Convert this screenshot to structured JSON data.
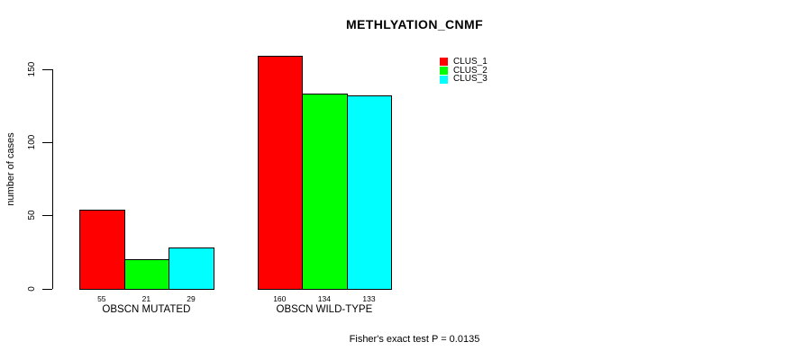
{
  "chart_data": {
    "type": "bar",
    "title": "METHLYATION_CNMF",
    "ylabel": "number of cases",
    "xlabel": "",
    "categories": [
      "OBSCN MUTATED",
      "OBSCN WILD-TYPE"
    ],
    "series": [
      {
        "name": "CLUS_1",
        "color": "#FF0000",
        "values": [
          55,
          160
        ]
      },
      {
        "name": "CLUS_2",
        "color": "#00FF00",
        "values": [
          21,
          134
        ]
      },
      {
        "name": "CLUS_3",
        "color": "#00FFFF",
        "values": [
          29,
          133
        ]
      }
    ],
    "yticks": [
      0,
      50,
      100,
      150
    ],
    "ylim": [
      0,
      165
    ],
    "bar_value_labels": true,
    "grid": false,
    "legend_position": "top-right",
    "annotation": "Fisher's exact test P = 0.0135"
  },
  "colors": {
    "background": "#FFFFFF",
    "axis": "#000000",
    "text": "#000000",
    "bar_border": "#000000"
  }
}
